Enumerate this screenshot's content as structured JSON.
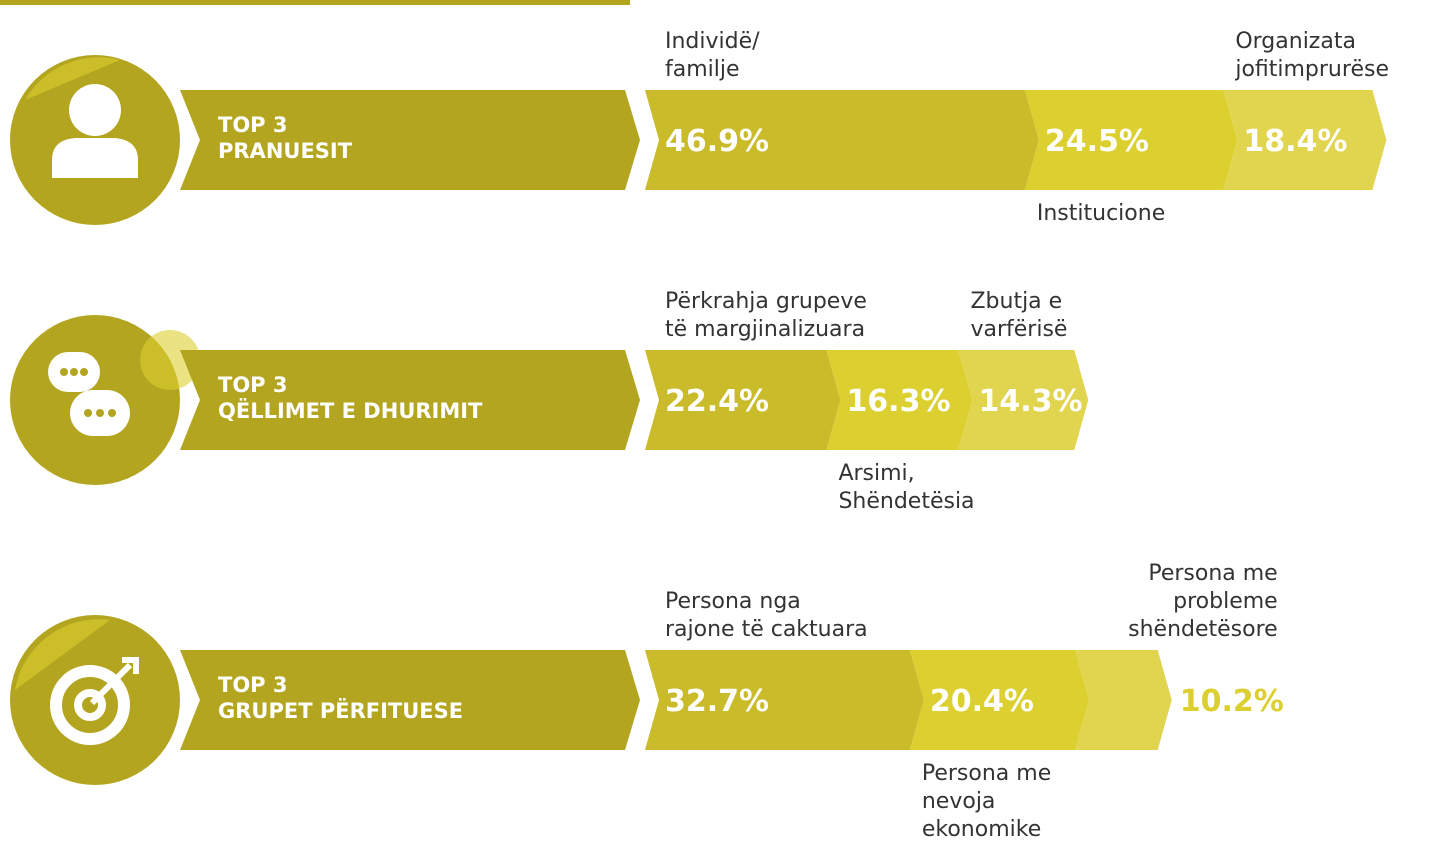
{
  "chart_data": [
    {
      "type": "bar",
      "subtitle": "TOP 3",
      "title": "PRANUESIT",
      "categories": [
        "Individë/\nfamilje",
        "Institucione",
        "Organizata\njofitimprurëse"
      ],
      "values": [
        46.9,
        24.5,
        18.4
      ],
      "value_labels": [
        "46.9%",
        "24.5%",
        "18.4%"
      ],
      "colors": [
        "#c9bb2a",
        "#dccf30",
        "#e1d54f"
      ],
      "color": "#b3a51f"
    },
    {
      "type": "bar",
      "subtitle": "TOP 3",
      "title": "QËLLIMET E DHURIMIT",
      "categories": [
        "Përkrahja grupeve\ntë margjinalizuara",
        "Arsimi,\nShëndetësia",
        "Zbutja e\nvarfërisë"
      ],
      "values": [
        22.4,
        16.3,
        14.3
      ],
      "value_labels": [
        "22.4%",
        "16.3%",
        "14.3%"
      ],
      "colors": [
        "#c9bb2a",
        "#dccf30",
        "#e1d54f"
      ],
      "color": "#b3a51f"
    },
    {
      "type": "bar",
      "subtitle": "TOP 3",
      "title": "GRUPET PËRFITUESE",
      "categories": [
        "Persona nga\nrajone të caktuara",
        "Persona me\nnevoja\nekonomike",
        "Persona me\nprobleme\nshëndetësore"
      ],
      "values": [
        32.7,
        20.4,
        10.2
      ],
      "value_labels": [
        "32.7%",
        "20.4%",
        "10.2%"
      ],
      "colors": [
        "#c9bb2a",
        "#dccf30",
        "#e1d54f"
      ],
      "color": "#b3a51f"
    }
  ]
}
